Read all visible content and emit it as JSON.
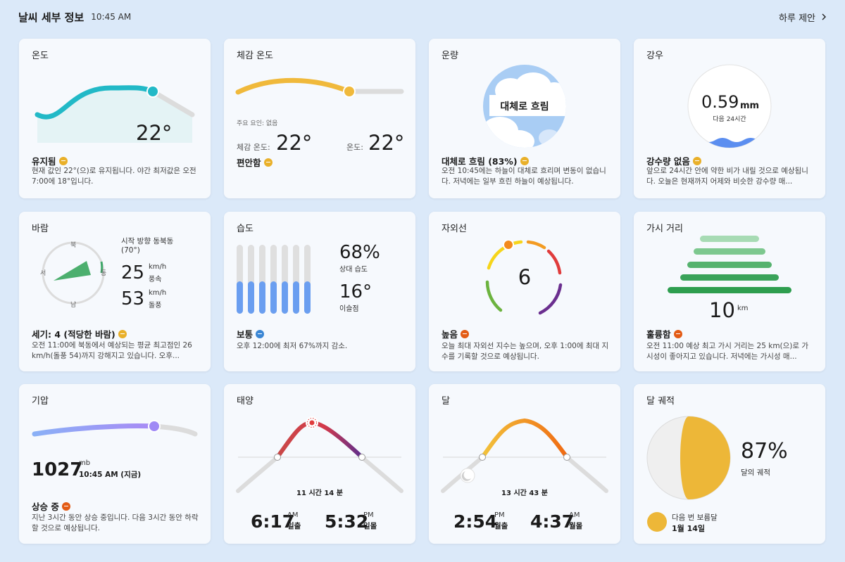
{
  "header": {
    "title": "날씨 세부 정보",
    "time": "10:45 AM",
    "link": "하루 제안"
  },
  "temp": {
    "title": "온도",
    "value": "22°",
    "status": "유지됨",
    "desc": "현재 값인 22°(으)로 유지됩니다. 야간 최저값은 오전 7:00에 18°입니다."
  },
  "feels": {
    "title": "체감 온도",
    "factor": "주요 요인: 없음",
    "feels_label": "체감 온도:",
    "feels_value": "22°",
    "temp_label": "온도:",
    "temp_value": "22°",
    "status": "편안함"
  },
  "cloud": {
    "title": "운량",
    "center": "대체로 흐림",
    "status": "대체로 흐림 (83%)",
    "desc": "오전 10:45에는 하늘이 대체로 흐리며 변동이 없습니다. 저녁에는 일부 흐린 하늘이 예상됩니다."
  },
  "rain": {
    "title": "강우",
    "value": "0.59",
    "unit": "mm",
    "sub": "다음 24시간",
    "status": "강수량 없음",
    "desc": "앞으로 24시간 안에 약한 비가 내릴 것으로 예상됩니다. 오늘은 현재까지 어제와 비슷한 강수량 매..."
  },
  "wind": {
    "title": "바람",
    "n": "북",
    "e": "동",
    "s": "남",
    "w": "서",
    "dir": "시작 방향 동북동",
    "deg": "(70°)",
    "speed": "25",
    "speed_unit": "km/h",
    "speed_label": "풍속",
    "gust": "53",
    "gust_unit": "km/h",
    "gust_label": "돌풍",
    "status": "세기: 4 (적당한 바람)",
    "desc": "오전 11:00에 북동에서 예상되는 평균 최고점인 26 km/h(돌풍 54)까지 강해지고 있습니다. 오후..."
  },
  "humidity": {
    "title": "습도",
    "value": "68%",
    "label": "상대 습도",
    "dew": "16°",
    "dew_label": "이슬점",
    "status": "보통",
    "desc": "오후 12:00에 최저 67%까지 감소."
  },
  "uv": {
    "title": "자외선",
    "value": "6",
    "status": "높음",
    "desc": "오늘 최대 자외선 지수는 높으며, 오후 1:00에 최대 지수를 기록할 것으로 예상됩니다."
  },
  "vis": {
    "title": "가시 거리",
    "value": "10",
    "unit": "km",
    "status": "훌륭함",
    "desc": "오전 11:00 예상 최고 가시 거리는 25 km(으)로 가시성이 좋아지고 있습니다. 저녁에는 가시성 매..."
  },
  "pressure": {
    "title": "기압",
    "value": "1027",
    "unit": "mb",
    "time": "10:45 AM (지금)",
    "status": "상승 중",
    "desc": "지난 3시간 동안 상승 중입니다. 다음 3시간 동안 하락할 것으로 예상됩니다."
  },
  "sun": {
    "title": "태양",
    "duration": "11 시간 14 분",
    "rise": "6:17",
    "rise_ampm": "AM",
    "rise_label": "일출",
    "set": "5:32",
    "set_ampm": "PM",
    "set_label": "일몰"
  },
  "moon": {
    "title": "달",
    "duration": "13 시간 43 분",
    "rise": "2:54",
    "rise_ampm": "PM",
    "rise_label": "월출",
    "set": "4:37",
    "set_ampm": "AM",
    "set_label": "월몰"
  },
  "phase": {
    "title": "달 궤적",
    "value": "87%",
    "label": "달의 궤적",
    "next_label": "다음 번 보름달",
    "next_date": "1월 14일"
  },
  "colors": {
    "accent_teal": "#22b9c7",
    "sun_yellow": "#f0b93b",
    "humidity_blue": "#6a9ef0",
    "uv_orange": "#f38a1c",
    "vis_green": "#2e9e4f",
    "pressure_purple": "#a08af5",
    "moon_yellow": "#edb738"
  },
  "icons": [
    "chevron-right-icon",
    "status-arrow-icon",
    "cloud-icon",
    "rain-wave-icon",
    "compass-icon",
    "sun-icon",
    "moon-icon"
  ]
}
